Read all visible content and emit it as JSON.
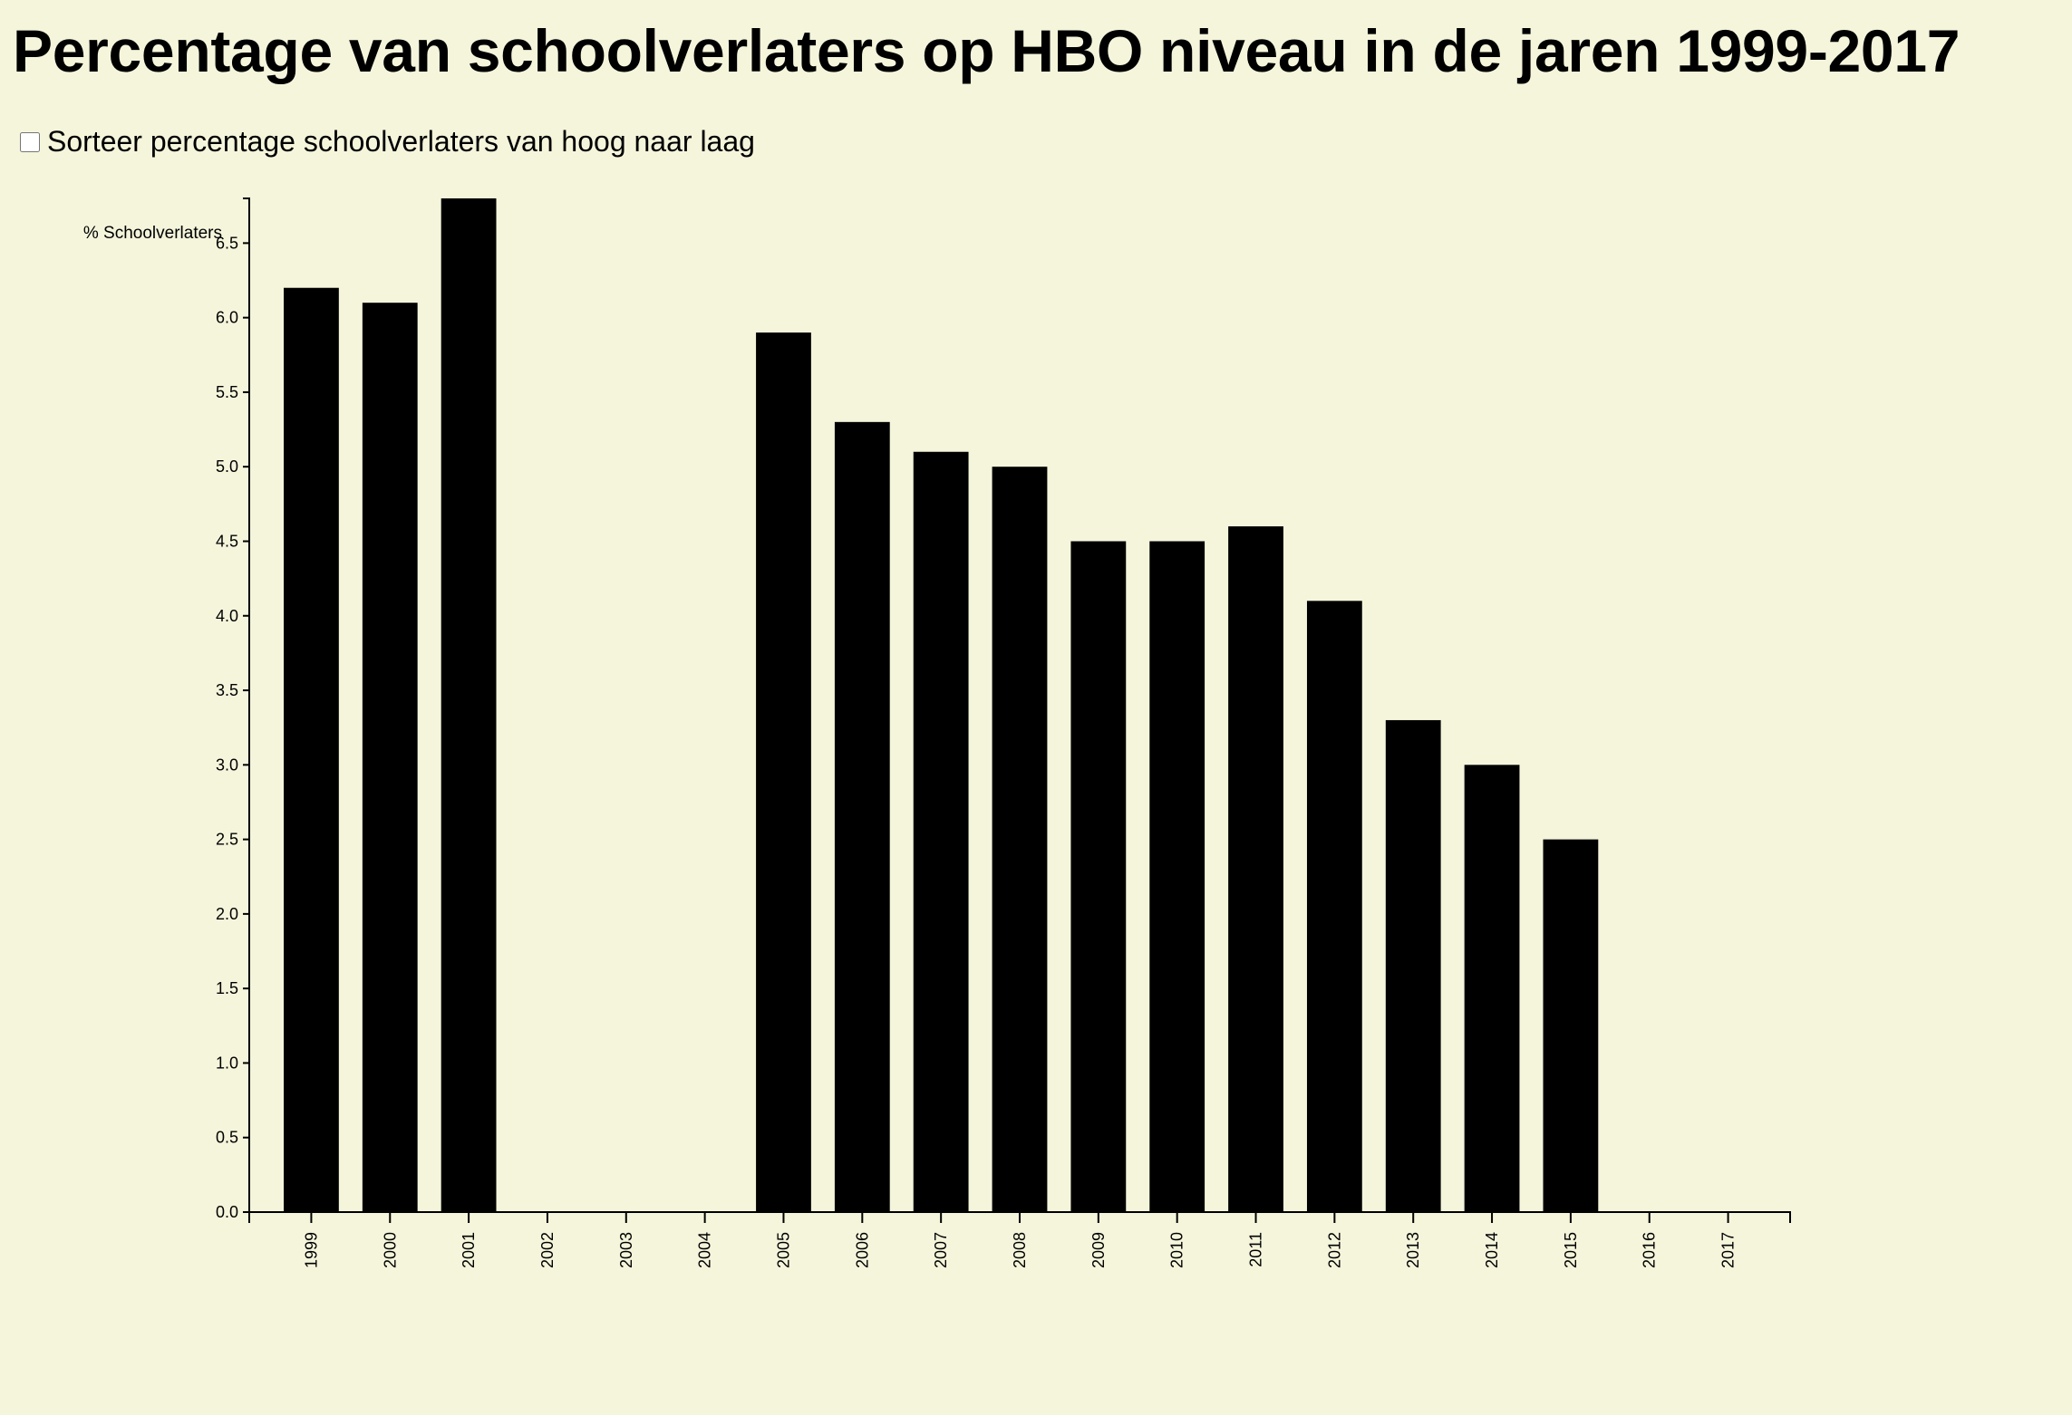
{
  "page": {
    "title": "Percentage van schoolverlaters op HBO niveau in de jaren 1999-2017",
    "sort_label": "Sorteer percentage schoolverlaters van hoog naar laag",
    "sort_checked": false,
    "background_color": "#f5f5dc"
  },
  "chart_data": {
    "type": "bar",
    "title": "Percentage van schoolverlaters op HBO niveau in de jaren 1999-2017",
    "xlabel": "",
    "ylabel": "% Schoolverlaters",
    "categories": [
      "1999",
      "2000",
      "2001",
      "2002",
      "2003",
      "2004",
      "2005",
      "2006",
      "2007",
      "2008",
      "2009",
      "2010",
      "2011",
      "2012",
      "2013",
      "2014",
      "2015",
      "2016",
      "2017"
    ],
    "values": [
      6.2,
      6.1,
      6.8,
      0,
      0,
      0,
      5.9,
      5.3,
      5.1,
      5.0,
      4.5,
      4.5,
      4.6,
      4.1,
      3.3,
      3.0,
      2.5,
      0,
      0
    ],
    "ylim": [
      0,
      6.8
    ],
    "yticks": [
      "0.0",
      "0.5",
      "1.0",
      "1.5",
      "2.0",
      "2.5",
      "3.0",
      "3.5",
      "4.0",
      "4.5",
      "5.0",
      "5.5",
      "6.0",
      "6.5"
    ],
    "grid": false,
    "bar_color": "#000000"
  }
}
